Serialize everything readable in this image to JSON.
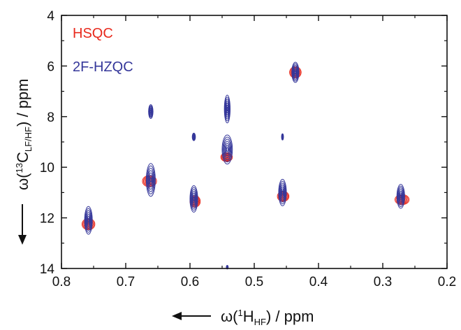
{
  "chart_data": {
    "type": "scatter",
    "title": "",
    "xlabel": {
      "main": "ω(",
      "sup": "1",
      "base": "H",
      "sub": "HF",
      "tail": ") / ppm"
    },
    "ylabel": {
      "main": "ω(",
      "sup": "13",
      "base": "C",
      "sub": "LF/HF",
      "tail": ") / ppm"
    },
    "xlim": [
      0.8,
      0.2
    ],
    "ylim": [
      4,
      14
    ],
    "x_ticks": [
      "0.8",
      "0.7",
      "0.6",
      "0.5",
      "0.4",
      "0.3",
      "0.2"
    ],
    "y_ticks": [
      "4",
      "6",
      "8",
      "10",
      "12",
      "14"
    ],
    "grid": false,
    "legend_position": "top-left",
    "series": [
      {
        "name": "HSQC",
        "color": "#e8291c",
        "peaks": [
          {
            "x": 0.758,
            "y": 12.25,
            "w": 0.02,
            "h": 0.45
          },
          {
            "x": 0.663,
            "y": 10.55,
            "w": 0.022,
            "h": 0.45
          },
          {
            "x": 0.592,
            "y": 11.35,
            "w": 0.016,
            "h": 0.45
          },
          {
            "x": 0.543,
            "y": 9.6,
            "w": 0.018,
            "h": 0.35
          },
          {
            "x": 0.455,
            "y": 11.15,
            "w": 0.018,
            "h": 0.4
          },
          {
            "x": 0.436,
            "y": 6.25,
            "w": 0.018,
            "h": 0.45
          },
          {
            "x": 0.27,
            "y": 11.28,
            "w": 0.022,
            "h": 0.4
          }
        ]
      },
      {
        "name": "2F-HZQC",
        "color": "#35379a",
        "peaks": [
          {
            "x": 0.758,
            "y": 12.1,
            "w": 0.012,
            "h": 1.1
          },
          {
            "x": 0.661,
            "y": 10.5,
            "w": 0.014,
            "h": 1.3
          },
          {
            "x": 0.661,
            "y": 7.8,
            "w": 0.007,
            "h": 0.55
          },
          {
            "x": 0.594,
            "y": 11.25,
            "w": 0.012,
            "h": 1.05
          },
          {
            "x": 0.594,
            "y": 8.8,
            "w": 0.005,
            "h": 0.3
          },
          {
            "x": 0.542,
            "y": 9.3,
            "w": 0.016,
            "h": 1.15
          },
          {
            "x": 0.542,
            "y": 7.7,
            "w": 0.009,
            "h": 1.1
          },
          {
            "x": 0.542,
            "y": 13.95,
            "w": 0.003,
            "h": 0.15
          },
          {
            "x": 0.456,
            "y": 11.0,
            "w": 0.012,
            "h": 1.05
          },
          {
            "x": 0.456,
            "y": 8.8,
            "w": 0.003,
            "h": 0.25
          },
          {
            "x": 0.436,
            "y": 6.25,
            "w": 0.011,
            "h": 0.8
          },
          {
            "x": 0.272,
            "y": 11.15,
            "w": 0.012,
            "h": 0.95
          }
        ]
      }
    ]
  }
}
